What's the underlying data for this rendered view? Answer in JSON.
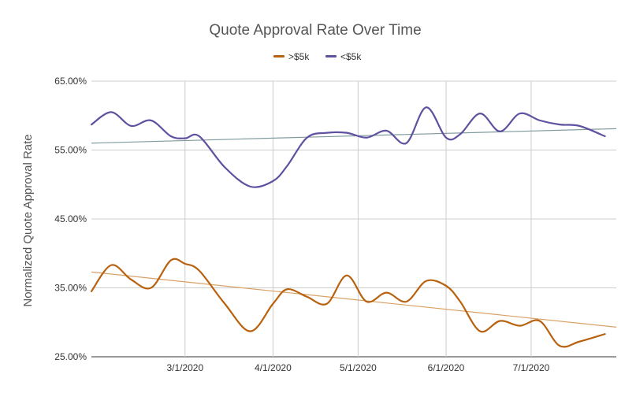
{
  "chart_data": {
    "type": "line",
    "title": "Quote Approval Rate Over Time",
    "ylabel": "Normalized Quote Approval Rate",
    "xlabel": "",
    "ylim": [
      0.25,
      0.65
    ],
    "y_ticks": [
      "65.00%",
      "55.00%",
      "45.00%",
      "35.00%",
      "25.00%"
    ],
    "y_tick_values": [
      0.65,
      0.55,
      0.45,
      0.35,
      0.25
    ],
    "x_range": [
      "2020-01-28",
      "2020-07-31"
    ],
    "x_ticks": [
      "3/1/2020",
      "4/1/2020",
      "5/1/2020",
      "6/1/2020",
      "7/1/2020"
    ],
    "x_tick_dates": [
      "2020-03-01",
      "2020-04-01",
      "2020-05-01",
      "2020-06-01",
      "2020-07-01"
    ],
    "grid": true,
    "legend_position": "top",
    "colors": {
      "gt5k": "#B8620F",
      "lt5k": "#6050A0",
      "trend_gt5k": "#D9A066",
      "trend_lt5k": "#7F9A9E"
    },
    "series": [
      {
        "name": "<$5k",
        "color": "#6050A0",
        "x": [
          "2020-01-28",
          "2020-02-04",
          "2020-02-11",
          "2020-02-18",
          "2020-02-25",
          "2020-03-01",
          "2020-03-06",
          "2020-03-15",
          "2020-03-24",
          "2020-04-01",
          "2020-04-06",
          "2020-04-13",
          "2020-04-20",
          "2020-04-27",
          "2020-05-04",
          "2020-05-11",
          "2020-05-18",
          "2020-05-25",
          "2020-06-01",
          "2020-06-06",
          "2020-06-13",
          "2020-06-20",
          "2020-06-27",
          "2020-07-04",
          "2020-07-11",
          "2020-07-18",
          "2020-07-27"
        ],
        "values": [
          0.587,
          0.605,
          0.585,
          0.593,
          0.57,
          0.567,
          0.57,
          0.525,
          0.497,
          0.505,
          0.527,
          0.568,
          0.575,
          0.575,
          0.568,
          0.578,
          0.56,
          0.612,
          0.568,
          0.573,
          0.603,
          0.577,
          0.603,
          0.593,
          0.587,
          0.585,
          0.57
        ]
      },
      {
        "name": ">$5k",
        "color": "#B8620F",
        "x": [
          "2020-01-28",
          "2020-02-04",
          "2020-02-11",
          "2020-02-18",
          "2020-02-25",
          "2020-03-01",
          "2020-03-06",
          "2020-03-15",
          "2020-03-24",
          "2020-04-01",
          "2020-04-06",
          "2020-04-13",
          "2020-04-20",
          "2020-04-27",
          "2020-05-04",
          "2020-05-11",
          "2020-05-18",
          "2020-05-25",
          "2020-06-01",
          "2020-06-06",
          "2020-06-13",
          "2020-06-20",
          "2020-06-27",
          "2020-07-04",
          "2020-07-11",
          "2020-07-18",
          "2020-07-27"
        ],
        "values": [
          0.345,
          0.383,
          0.362,
          0.35,
          0.39,
          0.385,
          0.375,
          0.327,
          0.287,
          0.327,
          0.348,
          0.337,
          0.327,
          0.368,
          0.33,
          0.343,
          0.33,
          0.36,
          0.353,
          0.33,
          0.287,
          0.302,
          0.295,
          0.302,
          0.266,
          0.272,
          0.283
        ]
      }
    ],
    "trendlines": [
      {
        "series": "<$5k",
        "start": [
          "2020-01-28",
          0.56
        ],
        "end": [
          "2020-07-31",
          0.581
        ]
      },
      {
        "series": ">$5k",
        "start": [
          "2020-01-28",
          0.373
        ],
        "end": [
          "2020-07-31",
          0.293
        ]
      }
    ]
  }
}
